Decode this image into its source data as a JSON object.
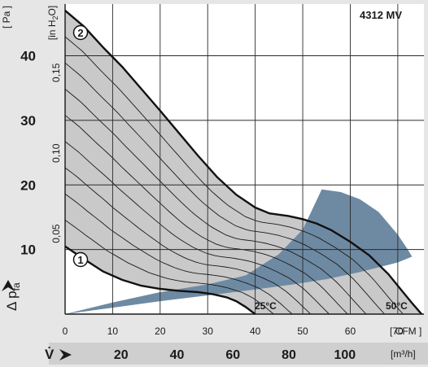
{
  "model_label": "4312  MV",
  "chart_data": {
    "type": "line",
    "title": "",
    "ylabel_primary": "Δ p",
    "ylabel_primary_sub": "fa",
    "ylabel_primary_unit": "[ Pa ]",
    "ylabel_secondary_unit": "[in H",
    "ylabel_secondary_unit_sub": "2",
    "ylabel_secondary_unit_end": "O]",
    "xlabel_symbol": "V̇",
    "xlabel_cfm_unit": "[ CFM ]",
    "xlabel_m3h_unit": "[m³/h]",
    "x_cfm_range": [
      0,
      75.5
    ],
    "y_pa_range": [
      0,
      48
    ],
    "y_pa_ticks": [
      "10",
      "20",
      "30",
      "40"
    ],
    "y_inh2o_ticks": [
      "0,05",
      "0,10",
      "0,15"
    ],
    "x_cfm_ticks": [
      "0",
      "10",
      "20",
      "30",
      "40",
      "50",
      "60",
      "70"
    ],
    "x_m3h_ticks": [
      "20",
      "40",
      "60",
      "80",
      "100"
    ],
    "curve_labels": [
      "1",
      "2"
    ],
    "annotations": [
      "25°C",
      "50°C"
    ],
    "series": [
      {
        "name": "2",
        "x": [
          0,
          4,
          8,
          12,
          16,
          20,
          24,
          28,
          32,
          36,
          40,
          43,
          45,
          47,
          50,
          53,
          56,
          60,
          64,
          68,
          71,
          73,
          75
        ],
        "y": [
          47,
          44.5,
          41.3,
          38.3,
          34.9,
          31.5,
          28.0,
          24.5,
          21.2,
          18.5,
          16.5,
          15.6,
          15.4,
          15.2,
          14.7,
          14.0,
          13.0,
          11.2,
          9.1,
          6.2,
          3.5,
          1.7,
          0
        ]
      },
      {
        "name": "1",
        "x": [
          0,
          4,
          8,
          12,
          16,
          20,
          24,
          28,
          31,
          34,
          36,
          38,
          40
        ],
        "y": [
          10.5,
          8.5,
          6.6,
          5.3,
          4.4,
          3.9,
          3.6,
          3.4,
          3.1,
          2.6,
          2.0,
          1.1,
          0
        ]
      }
    ],
    "operating_zone": {
      "x": [
        0,
        10,
        20,
        30,
        38,
        45,
        50,
        54,
        58,
        62,
        66,
        70,
        72,
        73,
        70,
        62,
        55,
        48,
        40,
        30,
        20,
        10,
        0
      ],
      "y": [
        0,
        1.8,
        3.4,
        4.6,
        6.0,
        9.3,
        13.1,
        19.3,
        18.9,
        17.8,
        15.8,
        12.3,
        10.1,
        8.9,
        8.0,
        6.5,
        5.4,
        4.6,
        3.8,
        2.9,
        2.0,
        1.0,
        0
      ]
    }
  }
}
